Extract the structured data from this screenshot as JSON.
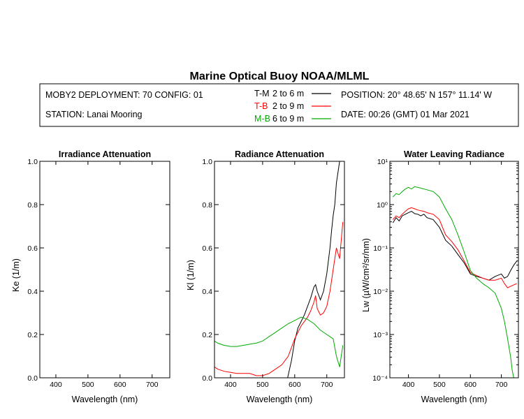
{
  "title": "Marine Optical Buoy NOAA/MLML",
  "info": {
    "deployment": "MOBY2 DEPLOYMENT: 70 CONFIG: 01",
    "station": "STATION: Lanai Mooring",
    "position": "POSITION: 20° 48.65' N   157° 11.14' W",
    "date": "DATE: 00:26 (GMT) 01 Mar 2021",
    "legend": [
      {
        "code": "T-M",
        "range": "2 to 6  m",
        "color": "#000000"
      },
      {
        "code": "T-B",
        "range": "2 to 9  m",
        "color": "#ff0000"
      },
      {
        "code": "M-B",
        "range": "6 to 9  m",
        "color": "#00aa00"
      }
    ]
  },
  "colors": {
    "T-M": "#000000",
    "T-B": "#ff0000",
    "M-B": "#00aa00"
  },
  "chart_data": [
    {
      "type": "line",
      "title": "Irradiance Attenuation",
      "xlabel": "Wavelength (nm)",
      "ylabel": "Ke  (1/m)",
      "xlim": [
        350,
        755
      ],
      "ylim": [
        0,
        1
      ],
      "xticks": [
        400,
        500,
        600,
        700
      ],
      "yticks": [
        "0.0",
        "0.2",
        "0.4",
        "0.6",
        "0.8",
        "1.0"
      ],
      "series": []
    },
    {
      "type": "line",
      "title": "Radiance Attenuation",
      "xlabel": "Wavelength (nm)",
      "ylabel": "Kl  (1/m)",
      "xlim": [
        350,
        755
      ],
      "ylim": [
        0,
        1
      ],
      "xticks": [
        400,
        500,
        600,
        700
      ],
      "yticks": [
        "0.0",
        "0.2",
        "0.4",
        "0.6",
        "0.8",
        "1.0"
      ],
      "series": [
        {
          "key": "T-M",
          "x": [
            578,
            590,
            600,
            610,
            620,
            630,
            640,
            650,
            660,
            665,
            670,
            680,
            690,
            700,
            710,
            715,
            720,
            725,
            730,
            735,
            740
          ],
          "y": [
            0.0,
            0.08,
            0.17,
            0.23,
            0.26,
            0.29,
            0.33,
            0.37,
            0.42,
            0.43,
            0.4,
            0.36,
            0.4,
            0.48,
            0.6,
            0.68,
            0.75,
            0.8,
            0.9,
            0.95,
            1.0
          ]
        },
        {
          "key": "T-B",
          "x": [
            350,
            360,
            380,
            400,
            420,
            440,
            460,
            480,
            500,
            520,
            540,
            560,
            580,
            600,
            620,
            630,
            640,
            650,
            660,
            665,
            670,
            680,
            690,
            700,
            710,
            720,
            730,
            740,
            750
          ],
          "y": [
            0.05,
            0.04,
            0.03,
            0.025,
            0.02,
            0.02,
            0.02,
            0.01,
            0.01,
            0.02,
            0.04,
            0.06,
            0.1,
            0.18,
            0.24,
            0.26,
            0.28,
            0.31,
            0.35,
            0.38,
            0.32,
            0.29,
            0.3,
            0.33,
            0.4,
            0.5,
            0.6,
            0.55,
            0.72
          ]
        },
        {
          "key": "M-B",
          "x": [
            350,
            360,
            380,
            400,
            420,
            440,
            460,
            480,
            500,
            520,
            540,
            560,
            580,
            600,
            620,
            640,
            660,
            680,
            700,
            720,
            730,
            740,
            750
          ],
          "y": [
            0.17,
            0.16,
            0.15,
            0.145,
            0.145,
            0.15,
            0.155,
            0.16,
            0.17,
            0.19,
            0.21,
            0.23,
            0.25,
            0.265,
            0.28,
            0.27,
            0.25,
            0.22,
            0.2,
            0.18,
            0.1,
            0.05,
            0.15
          ]
        }
      ]
    },
    {
      "type": "line",
      "title": "Water Leaving Radiance",
      "xlabel": "Wavelength (nm)",
      "ylabel": "Lw  (µW/cm²/sr/nm)",
      "xlim": [
        340,
        755
      ],
      "ylim": [
        0.0001,
        10
      ],
      "yscale": "log",
      "xticks": [
        400,
        500,
        600,
        700
      ],
      "yticks": [
        "10⁻⁴",
        "10⁻³",
        "10⁻²",
        "10⁻¹",
        "10⁰",
        "10¹"
      ],
      "series": [
        {
          "key": "T-M",
          "x": [
            350,
            360,
            370,
            380,
            390,
            400,
            410,
            420,
            430,
            440,
            450,
            460,
            480,
            500,
            520,
            540,
            560,
            580,
            600,
            620,
            640,
            660,
            680,
            700,
            710,
            720,
            730,
            740,
            750
          ],
          "y": [
            0.38,
            0.5,
            0.42,
            0.55,
            0.6,
            0.65,
            0.7,
            0.62,
            0.6,
            0.55,
            0.6,
            0.5,
            0.45,
            0.3,
            0.15,
            0.11,
            0.07,
            0.045,
            0.025,
            0.022,
            0.02,
            0.018,
            0.022,
            0.025,
            0.02,
            0.022,
            0.03,
            0.04,
            0.05
          ]
        },
        {
          "key": "T-B",
          "x": [
            350,
            360,
            370,
            380,
            390,
            400,
            410,
            420,
            430,
            440,
            450,
            460,
            480,
            500,
            520,
            540,
            560,
            580,
            600,
            620,
            640,
            660,
            680,
            700,
            710,
            720,
            730,
            740,
            750
          ],
          "y": [
            0.45,
            0.55,
            0.5,
            0.6,
            0.7,
            0.8,
            0.85,
            0.8,
            0.75,
            0.72,
            0.7,
            0.65,
            0.6,
            0.45,
            0.2,
            0.14,
            0.09,
            0.05,
            0.027,
            0.023,
            0.02,
            0.018,
            0.018,
            0.02,
            0.015,
            0.012,
            0.013,
            0.014,
            0.015
          ]
        },
        {
          "key": "M-B",
          "x": [
            350,
            360,
            370,
            380,
            390,
            400,
            410,
            420,
            440,
            460,
            480,
            500,
            520,
            540,
            560,
            580,
            600,
            620,
            640,
            660,
            680,
            700,
            710,
            720,
            730,
            735,
            740
          ],
          "y": [
            1.5,
            1.8,
            1.7,
            2.0,
            2.3,
            2.5,
            2.3,
            2.6,
            2.4,
            2.2,
            2.0,
            1.5,
            0.8,
            0.45,
            0.2,
            0.08,
            0.03,
            0.02,
            0.015,
            0.012,
            0.009,
            0.004,
            0.002,
            0.0008,
            0.0003,
            0.00015,
            0.0001
          ]
        }
      ]
    }
  ]
}
